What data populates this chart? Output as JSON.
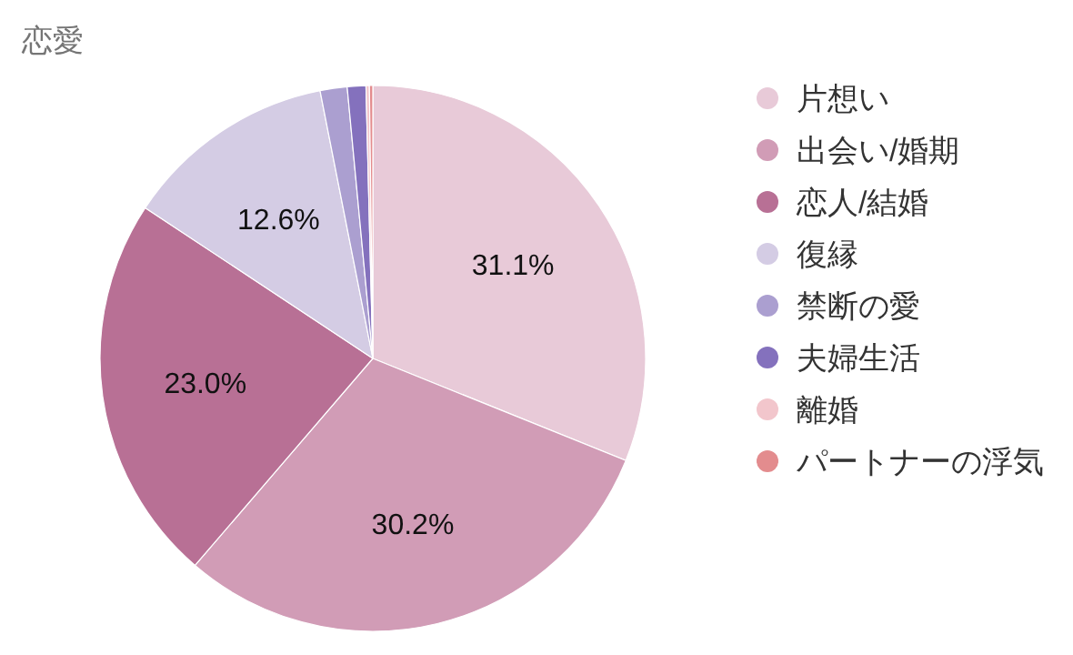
{
  "chart_data": {
    "type": "pie",
    "title": "恋愛",
    "categories": [
      "片想い",
      "出会い/婚期",
      "恋人/結婚",
      "復縁",
      "禁断の愛",
      "夫婦生活",
      "離婚",
      "パートナーの浮気"
    ],
    "values": [
      31.1,
      30.2,
      23.0,
      12.6,
      1.6,
      1.1,
      0.2,
      0.2
    ],
    "value_labels": [
      "31.1%",
      "30.2%",
      "23.0%",
      "12.6%",
      null,
      null,
      null,
      null
    ],
    "colors": [
      "#e8cad8",
      "#d19cb6",
      "#b87095",
      "#d4cce4",
      "#ab9fd0",
      "#8471bd",
      "#f2c6cc",
      "#e38c8e"
    ],
    "legend": "right"
  }
}
